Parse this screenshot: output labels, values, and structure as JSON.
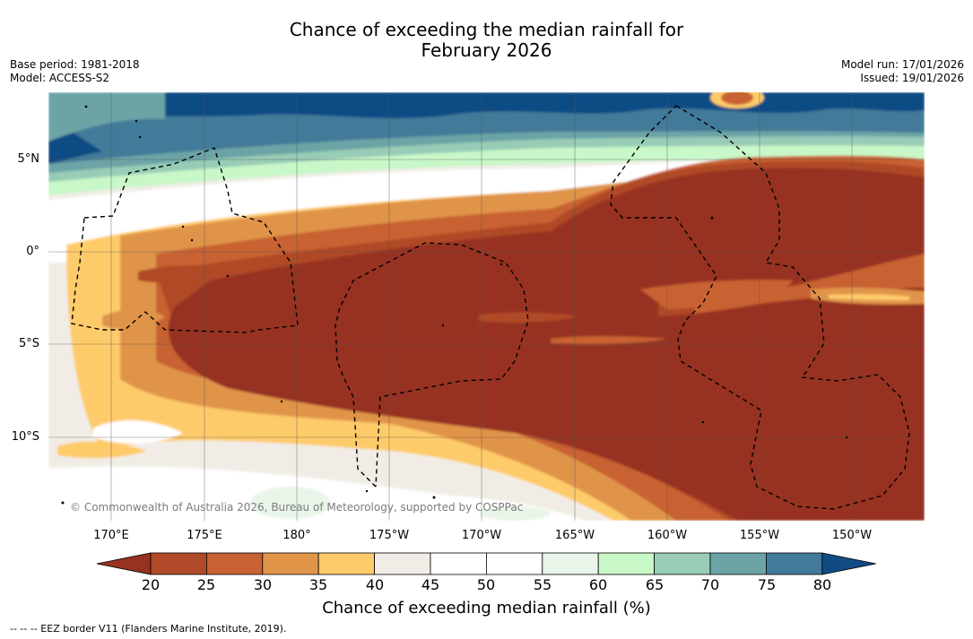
{
  "title": {
    "line1": "Chance of exceeding the median rainfall for",
    "line2": "February 2026"
  },
  "meta": {
    "base_period": "Base period: 1981-2018",
    "model": "Model: ACCESS-S2",
    "model_run": "Model run: 17/01/2026",
    "issued": "Issued: 19/01/2026"
  },
  "map": {
    "lat_labels": [
      "5°N",
      "0°",
      "5°S",
      "10°S"
    ],
    "lon_labels": [
      "170°E",
      "175°E",
      "180°",
      "175°W",
      "170°W",
      "165°W",
      "160°W",
      "155°W",
      "150°W"
    ],
    "copyright": "© Commonwealth of Australia 2026, Bureau of Meteorology, supported by COSPPac"
  },
  "colorbar": {
    "ticks": [
      "20",
      "25",
      "30",
      "35",
      "40",
      "45",
      "50",
      "55",
      "60",
      "65",
      "70",
      "75",
      "80"
    ],
    "label": "Chance of exceeding median rainfall (%)",
    "colors": [
      "#973220",
      "#b04a28",
      "#c86232",
      "#e09448",
      "#fecb6a",
      "#f1ede6",
      "#ffffff",
      "#ffffff",
      "#e9f5e8",
      "#c8f7c8",
      "#98ccb6",
      "#6ca4a6",
      "#437a99",
      "#114b84"
    ]
  },
  "footnote": "--  --  -- EEZ border V11 (Flanders Marine Institute, 2019)."
}
